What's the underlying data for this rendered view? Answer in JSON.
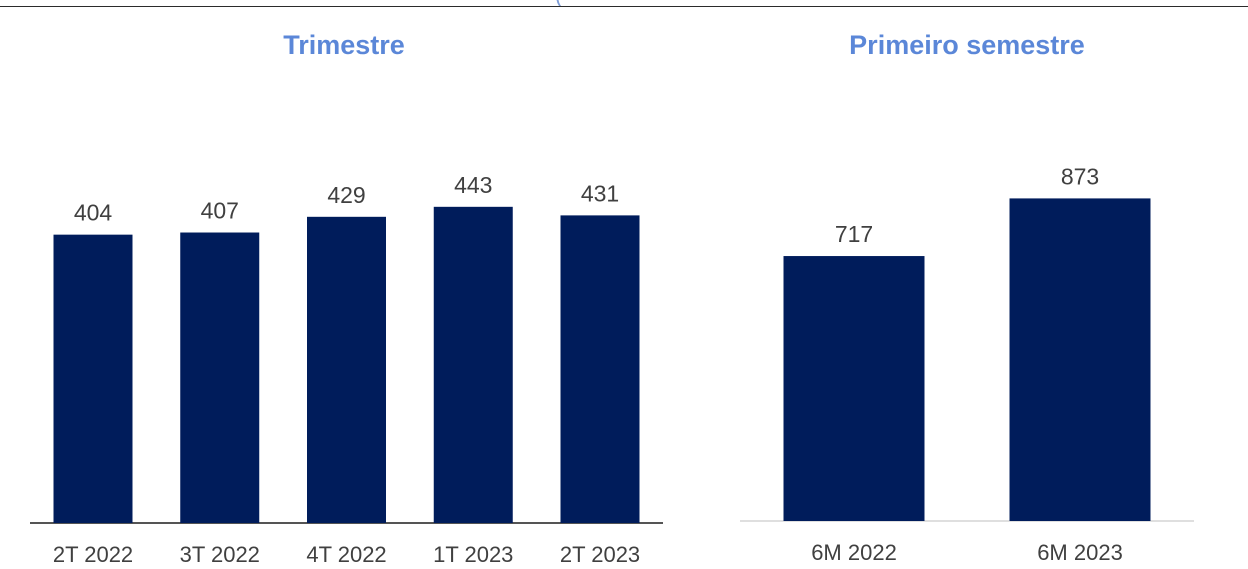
{
  "colors": {
    "title": "#5b87d8",
    "bar": "#001c5b",
    "label": "#404040",
    "left_axis": "#555555",
    "right_axis": "#bfbfbf",
    "top_rule": "#2b2b2b"
  },
  "chart_data": [
    {
      "type": "bar",
      "title": "Trimestre",
      "categories": [
        "2T 2022",
        "3T 2022",
        "4T 2022",
        "1T 2023",
        "2T 2023"
      ],
      "values": [
        404,
        407,
        429,
        443,
        431
      ],
      "ylim": [
        0,
        510
      ],
      "grid": false
    },
    {
      "type": "bar",
      "title": "Primeiro semestre",
      "categories": [
        "6M 2022",
        "6M 2023"
      ],
      "values": [
        717,
        873
      ],
      "ylim": [
        0,
        1050
      ],
      "grid": false
    }
  ]
}
